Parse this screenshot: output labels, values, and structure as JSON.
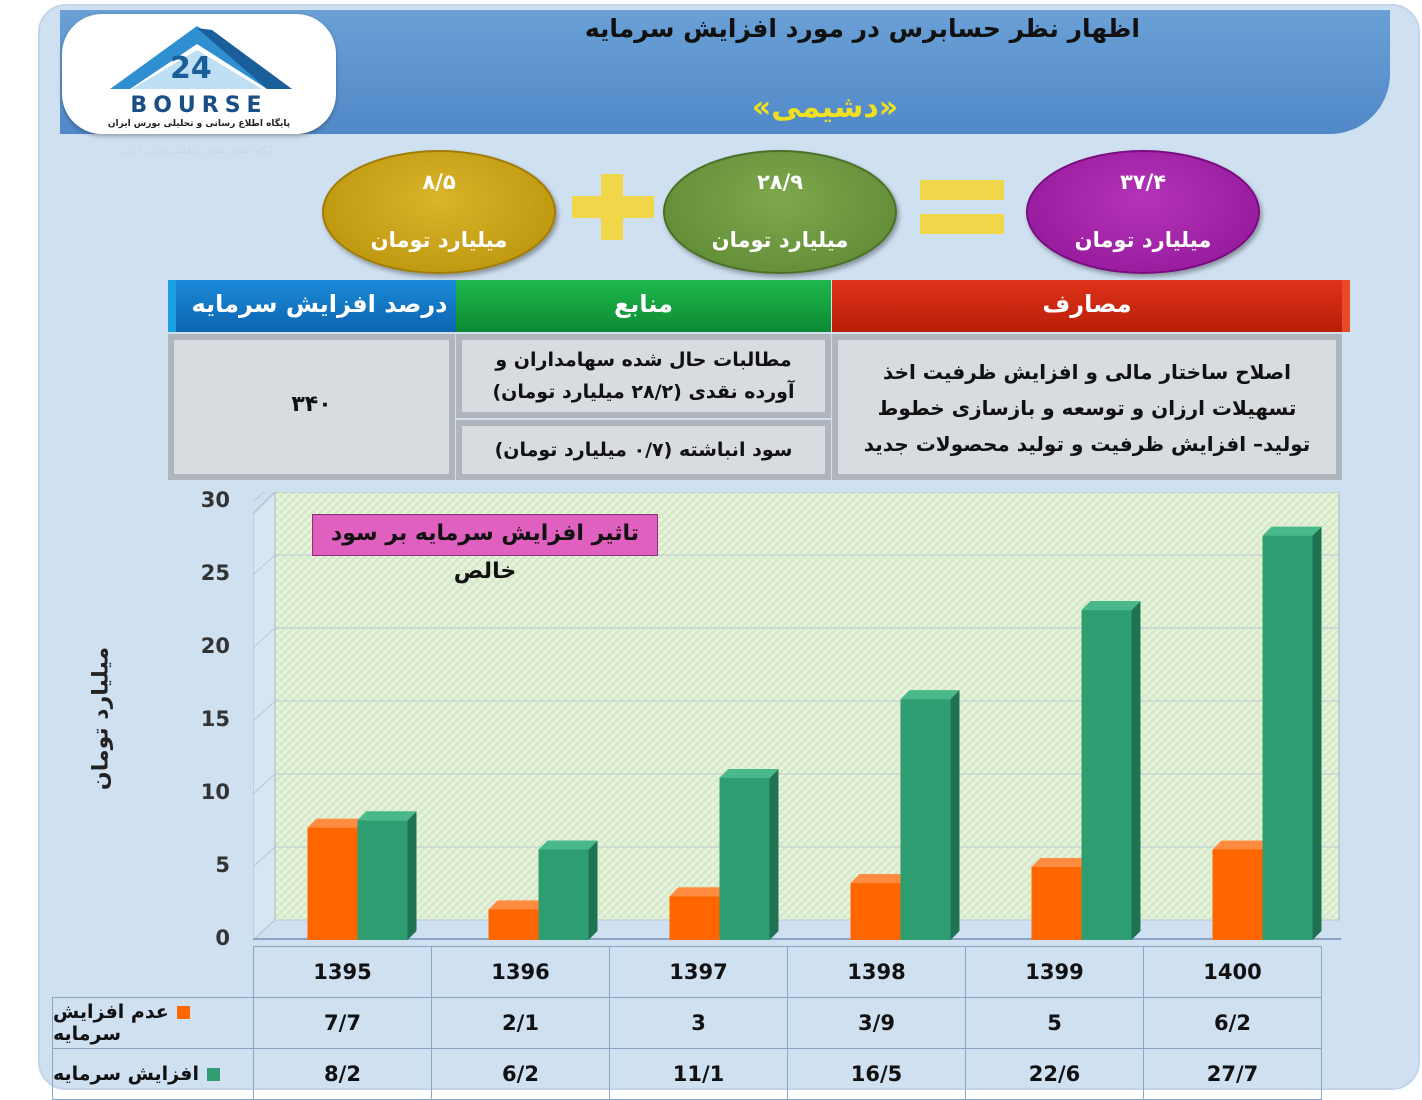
{
  "header": {
    "title": "اظهار نظر حسابرس در مورد افزایش سرمایه",
    "company": "«دشیمی»",
    "logo_text": "BOURSE",
    "logo_number": "24",
    "logo_caption": "پایگاه اطلاع رسانی و تحلیلی بورس ایران"
  },
  "equation": {
    "left": {
      "value": "۸/۵",
      "unit": "میلیارد تومان",
      "color": "#c9a416"
    },
    "middle": {
      "value": "۲۸/۹",
      "unit": "میلیارد تومان",
      "color": "#6b9640"
    },
    "right": {
      "value": "۳۷/۴",
      "unit": "میلیارد تومان",
      "color": "#a020a8"
    }
  },
  "table": {
    "percent_header": "درصد افزایش سرمایه",
    "sources_header": "منابع",
    "uses_header": "مصارف",
    "percent_value": "۳۴۰",
    "source_1": "مطالبات حال شده سهامداران و آورده نقدی (۲۸/۲ میلیارد تومان)",
    "source_2": "سود انباشته (۰/۷ میلیارد تومان)",
    "uses_text": "اصلاح ساختار مالی و افزایش ظرفیت اخذ تسهیلات ارزان و توسعه و بازسازی خطوط تولید– افزایش ظرفیت و تولید محصولات جدید"
  },
  "chart_data": {
    "type": "bar",
    "title": "تاثیر افزایش سرمایه بر سود خالص",
    "ylabel": "میلیارد تومان",
    "xlabel": "",
    "ylim": [
      0,
      30
    ],
    "yticks": [
      "0",
      "5",
      "10",
      "15",
      "20",
      "25",
      "30"
    ],
    "categories": [
      "1395",
      "1396",
      "1397",
      "1398",
      "1399",
      "1400"
    ],
    "series": [
      {
        "name": "عدم افزایش سرمایه",
        "values": [
          7.7,
          2.1,
          3,
          3.9,
          5,
          6.2
        ],
        "labels": [
          "7/7",
          "2/1",
          "3",
          "3/9",
          "5",
          "6/2"
        ],
        "color": "#ff6600"
      },
      {
        "name": "افزایش سرمایه",
        "values": [
          8.2,
          6.2,
          11.1,
          16.5,
          22.6,
          27.7
        ],
        "labels": [
          "8/2",
          "6/2",
          "11/1",
          "16/5",
          "22/6",
          "27/7"
        ],
        "color": "#2e9e72"
      }
    ],
    "grid": true,
    "legend": "bottom-table"
  }
}
